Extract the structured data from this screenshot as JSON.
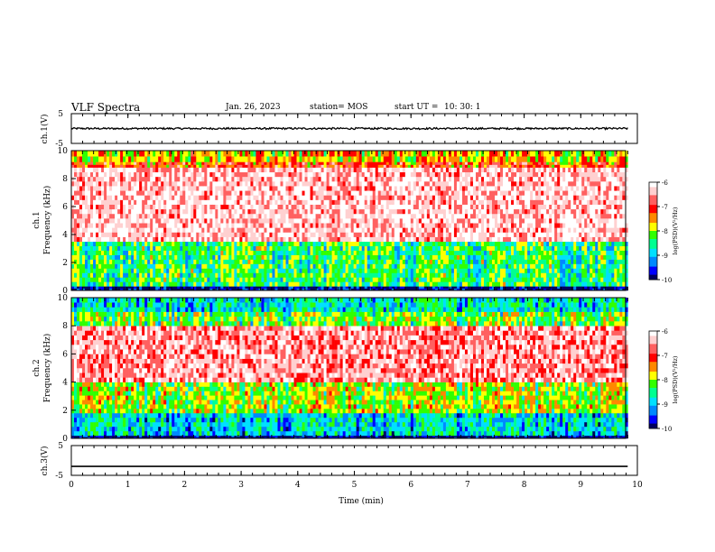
{
  "header": {
    "title": "VLF Spectra",
    "date": "Jan. 26, 2023",
    "station": "station= MOS",
    "start_ut_label": "start  UT  =",
    "start_ut_value": "10: 30: 1"
  },
  "colors": {
    "spectrum_scale": [
      "#000060",
      "#0000ff",
      "#0088ff",
      "#00e0ff",
      "#00ff90",
      "#30ff00",
      "#ffff00",
      "#ff8800",
      "#ff0000",
      "#ff6060",
      "#ffd0d0",
      "#ffffff"
    ],
    "trace": "#000000"
  },
  "chart_data": [
    {
      "type": "line",
      "name": "ch.1 waveform",
      "ylabel": "ch.1(V)",
      "ylim": [
        -5,
        5
      ],
      "yticks": [
        "5",
        "-5"
      ],
      "baseline": 0,
      "noise_amplitude": 0.3
    },
    {
      "type": "heatmap",
      "ylabel_line1": "ch.1",
      "ylabel_line2": "Frequency  (kHz)",
      "ylim": [
        0,
        10
      ],
      "yticks": [
        "0",
        "2",
        "4",
        "6",
        "8",
        "10"
      ],
      "colorbar": {
        "label": "log(PSD)(V²/Hz)",
        "ticks": [
          "-6",
          "-7",
          "-8",
          "-9",
          "-10"
        ],
        "range": [
          -10,
          -6
        ]
      },
      "bands": [
        {
          "freq_khz": [
            0.0,
            0.3
          ],
          "log_psd": -9.8
        },
        {
          "freq_khz": [
            0.3,
            3.5
          ],
          "log_psd": -8.2
        },
        {
          "freq_khz": [
            3.5,
            8.8
          ],
          "log_psd": -6.4
        },
        {
          "freq_khz": [
            8.8,
            9.2
          ],
          "log_psd": -7.0
        },
        {
          "freq_khz": [
            9.2,
            10.0
          ],
          "log_psd": -7.5
        }
      ]
    },
    {
      "type": "heatmap",
      "ylabel_line1": "ch.2",
      "ylabel_line2": "Frequency  (kHz)",
      "ylim": [
        0,
        10
      ],
      "yticks": [
        "0",
        "2",
        "4",
        "6",
        "8",
        "10"
      ],
      "colorbar": {
        "label": "log(PSD)(V²/Hz)",
        "ticks": [
          "-6",
          "-7",
          "-8",
          "-9",
          "-10"
        ],
        "range": [
          -10,
          -6
        ]
      },
      "bands": [
        {
          "freq_khz": [
            0.0,
            0.2
          ],
          "log_psd": -9.9
        },
        {
          "freq_khz": [
            0.2,
            1.8
          ],
          "log_psd": -8.7
        },
        {
          "freq_khz": [
            1.8,
            4.0
          ],
          "log_psd": -7.8
        },
        {
          "freq_khz": [
            4.0,
            8.0
          ],
          "log_psd": -6.6
        },
        {
          "freq_khz": [
            8.0,
            9.0
          ],
          "log_psd": -8.0
        },
        {
          "freq_khz": [
            9.0,
            10.0
          ],
          "log_psd": -8.6
        }
      ]
    },
    {
      "type": "line",
      "name": "ch.3 waveform",
      "ylabel": "ch.3(V)",
      "ylim": [
        -5,
        5
      ],
      "yticks": [
        "5",
        "-5"
      ],
      "baseline": -2,
      "noise_amplitude": 0.0
    }
  ],
  "x_axis": {
    "label": "Time  (min)",
    "range": [
      0,
      10
    ],
    "data_end": 9.83,
    "ticks": [
      "0",
      "1",
      "2",
      "3",
      "4",
      "5",
      "6",
      "7",
      "8",
      "9",
      "10"
    ]
  }
}
